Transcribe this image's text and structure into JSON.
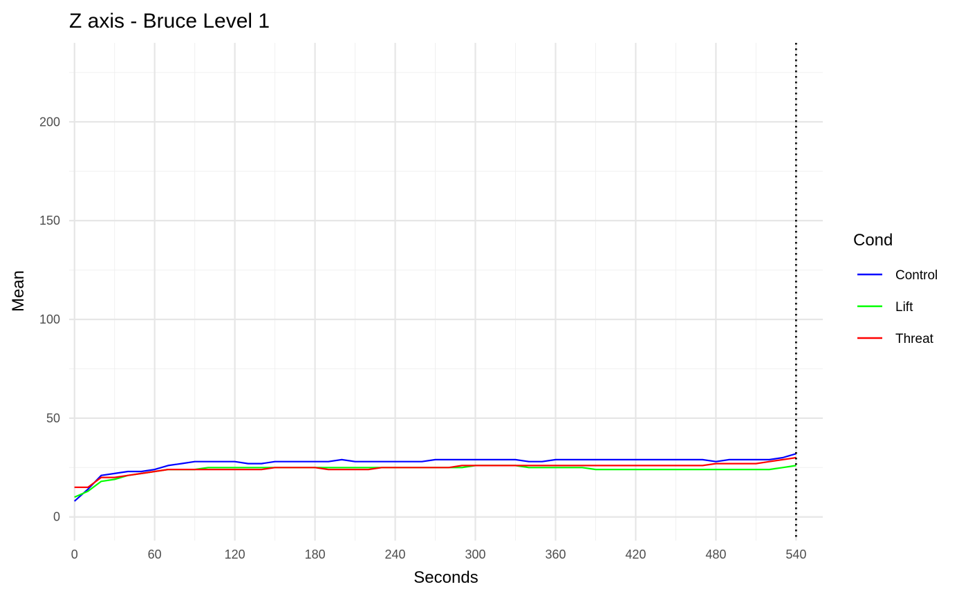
{
  "chart_data": {
    "type": "line",
    "title": "Z axis - Bruce Level 1",
    "xlabel": "Seconds",
    "ylabel": "Mean",
    "xlim": [
      -4,
      560
    ],
    "ylim": [
      -12,
      240
    ],
    "x_ticks": [
      0,
      60,
      120,
      180,
      240,
      300,
      360,
      420,
      480,
      540
    ],
    "y_ticks": [
      0,
      50,
      100,
      150,
      200
    ],
    "grid": true,
    "vline": {
      "x": 540,
      "style": "dotted",
      "color": "#000000"
    },
    "legend": {
      "title": "Cond",
      "position": "right"
    },
    "x": [
      0,
      10,
      20,
      30,
      40,
      50,
      60,
      70,
      80,
      90,
      100,
      110,
      120,
      130,
      140,
      150,
      160,
      170,
      180,
      190,
      200,
      210,
      220,
      230,
      240,
      250,
      260,
      270,
      280,
      290,
      300,
      310,
      320,
      330,
      340,
      350,
      360,
      370,
      380,
      390,
      400,
      410,
      420,
      430,
      440,
      450,
      460,
      470,
      480,
      490,
      500,
      510,
      520,
      530,
      540
    ],
    "series": [
      {
        "name": "Control",
        "color": "#0000ff",
        "values": [
          8,
          14,
          21,
          22,
          23,
          23,
          24,
          26,
          27,
          28,
          28,
          28,
          28,
          27,
          27,
          28,
          28,
          28,
          28,
          28,
          29,
          28,
          28,
          28,
          28,
          28,
          28,
          29,
          29,
          29,
          29,
          29,
          29,
          29,
          28,
          28,
          29,
          29,
          29,
          29,
          29,
          29,
          29,
          29,
          29,
          29,
          29,
          29,
          28,
          29,
          29,
          29,
          29,
          30,
          32
        ]
      },
      {
        "name": "Lift",
        "color": "#00ff00",
        "values": [
          10,
          13,
          18,
          19,
          21,
          22,
          23,
          24,
          24,
          24,
          25,
          25,
          25,
          25,
          25,
          25,
          25,
          25,
          25,
          25,
          25,
          25,
          25,
          25,
          25,
          25,
          25,
          25,
          25,
          25,
          26,
          26,
          26,
          26,
          25,
          25,
          25,
          25,
          25,
          24,
          24,
          24,
          24,
          24,
          24,
          24,
          24,
          24,
          24,
          24,
          24,
          24,
          24,
          25,
          26
        ]
      },
      {
        "name": "Threat",
        "color": "#ff0000",
        "values": [
          15,
          15,
          20,
          20,
          21,
          22,
          23,
          24,
          24,
          24,
          24,
          24,
          24,
          24,
          24,
          25,
          25,
          25,
          25,
          24,
          24,
          24,
          24,
          25,
          25,
          25,
          25,
          25,
          25,
          26,
          26,
          26,
          26,
          26,
          26,
          26,
          26,
          26,
          26,
          26,
          26,
          26,
          26,
          26,
          26,
          26,
          26,
          26,
          27,
          27,
          27,
          27,
          28,
          29,
          30
        ]
      }
    ]
  }
}
